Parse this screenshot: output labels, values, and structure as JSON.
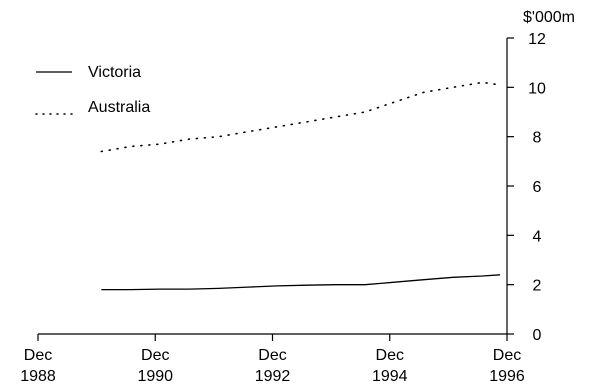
{
  "chart_data": {
    "type": "line",
    "title": "",
    "xlabel": "",
    "ylabel": "",
    "y_unit_label": "$'000m",
    "ylim": [
      0,
      12
    ],
    "y_ticks": [
      0,
      2,
      4,
      6,
      8,
      10,
      12
    ],
    "y_axis_side": "right",
    "grid": false,
    "legend_position": "top-left",
    "x_range": [
      1988.92,
      1996.92
    ],
    "x_ticks": [
      {
        "x": 1988.92,
        "line1": "Dec",
        "line2": "1988"
      },
      {
        "x": 1990.92,
        "line1": "Dec",
        "line2": "1990"
      },
      {
        "x": 1992.92,
        "line1": "Dec",
        "line2": "1992"
      },
      {
        "x": 1994.92,
        "line1": "Dec",
        "line2": "1994"
      },
      {
        "x": 1996.92,
        "line1": "Dec",
        "line2": "1996"
      }
    ],
    "series": [
      {
        "name": "Victoria",
        "style": "solid",
        "color": "#000000",
        "x": [
          1990.0,
          1990.5,
          1991.0,
          1991.5,
          1992.0,
          1992.5,
          1993.0,
          1993.5,
          1994.0,
          1994.5,
          1995.0,
          1995.5,
          1996.0,
          1996.5,
          1996.8
        ],
        "y": [
          1.8,
          1.8,
          1.82,
          1.82,
          1.85,
          1.9,
          1.95,
          1.98,
          2.0,
          2.0,
          2.1,
          2.2,
          2.3,
          2.35,
          2.4
        ]
      },
      {
        "name": "Australia",
        "style": "dotted",
        "color": "#000000",
        "x": [
          1990.0,
          1990.5,
          1991.0,
          1991.5,
          1992.0,
          1992.5,
          1993.0,
          1993.5,
          1994.0,
          1994.5,
          1995.0,
          1995.5,
          1996.0,
          1996.5,
          1996.8
        ],
        "y": [
          7.4,
          7.6,
          7.7,
          7.9,
          8.0,
          8.2,
          8.4,
          8.6,
          8.8,
          9.0,
          9.4,
          9.8,
          10.0,
          10.2,
          10.1
        ]
      }
    ]
  }
}
